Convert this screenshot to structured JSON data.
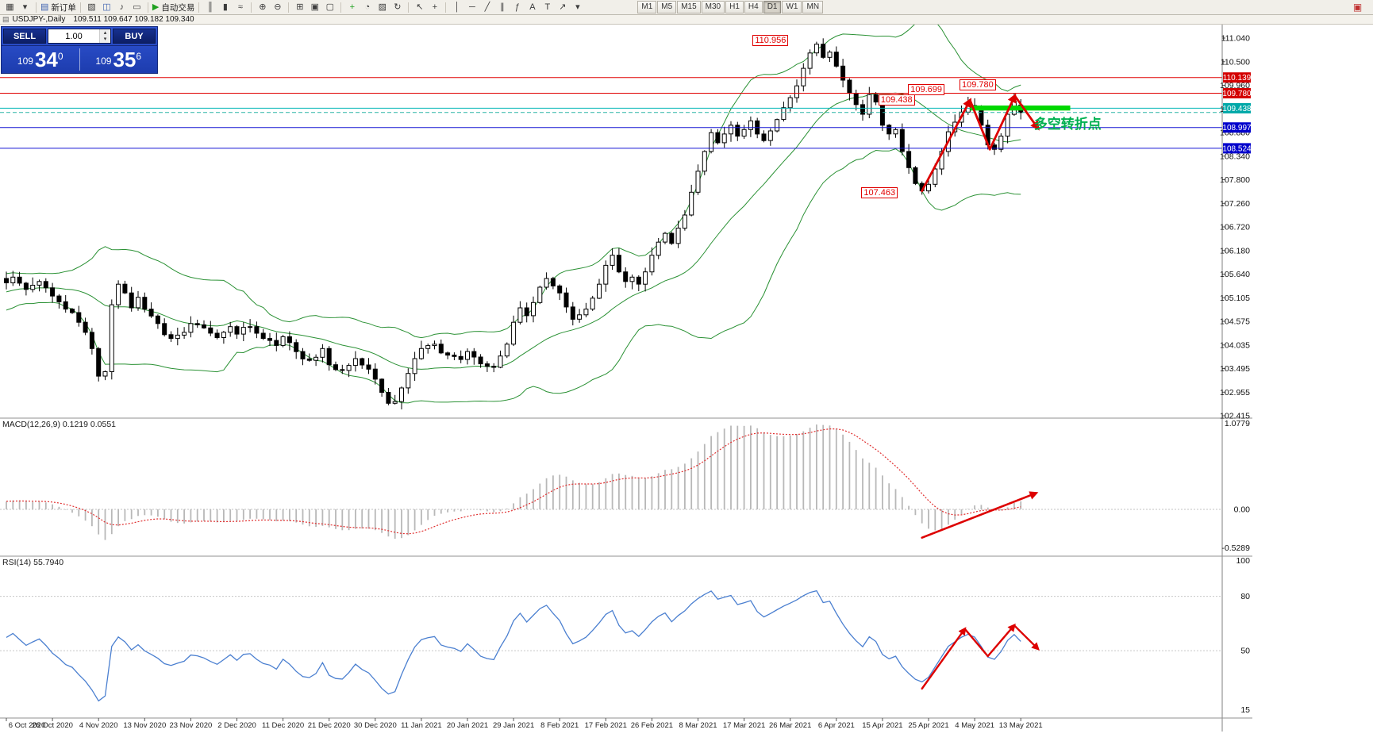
{
  "caption": {
    "window_icon": "▤",
    "symbol": "USDJPY-,Daily",
    "ohlc": "109.511 109.647 109.182 109.340"
  },
  "toolbar": {
    "groups": [
      {
        "items": [
          {
            "name": "new-chart-icon",
            "glyph": "▦"
          },
          {
            "name": "new-chart-dropdown-icon",
            "glyph": "▾"
          }
        ]
      },
      {
        "items": [
          {
            "name": "new-order-button",
            "glyph": "▤",
            "glyph_color": "#3a5fae",
            "label": "新订单"
          }
        ]
      },
      {
        "items": [
          {
            "name": "profiles-icon",
            "glyph": "▧"
          },
          {
            "name": "accounts-icon",
            "glyph": "◫",
            "glyph_color": "#3a5fae"
          },
          {
            "name": "alerts-icon",
            "glyph": "♪"
          },
          {
            "name": "mail-icon",
            "glyph": "▭"
          }
        ]
      },
      {
        "items": [
          {
            "name": "autotrading-button",
            "glyph": "▶",
            "glyph_color": "#1fa01f",
            "label": "自动交易"
          }
        ]
      },
      {
        "items": [
          {
            "name": "bar-chart-icon",
            "glyph": "║"
          },
          {
            "name": "candlestick-chart-icon",
            "glyph": "▮"
          },
          {
            "name": "line-chart-icon",
            "glyph": "≈"
          }
        ]
      },
      {
        "items": [
          {
            "name": "zoom-in-icon",
            "glyph": "⊕"
          },
          {
            "name": "zoom-out-icon",
            "glyph": "⊖"
          }
        ]
      },
      {
        "items": [
          {
            "name": "tile-windows-icon",
            "glyph": "⊞"
          },
          {
            "name": "cascade-windows-icon",
            "glyph": "▣"
          },
          {
            "name": "window-list-icon",
            "glyph": "▢"
          }
        ]
      },
      {
        "items": [
          {
            "name": "indicators-icon",
            "glyph": "+",
            "glyph_color": "#1fa01f"
          },
          {
            "name": "periods-icon",
            "glyph": "◔"
          },
          {
            "name": "templates-icon",
            "glyph": "▨"
          },
          {
            "name": "refresh-icon",
            "glyph": "↻"
          }
        ]
      },
      {
        "items": [
          {
            "name": "cursor-icon",
            "glyph": "↖"
          },
          {
            "name": "crosshair-icon",
            "glyph": "+"
          }
        ]
      },
      {
        "items": [
          {
            "name": "vertical-line-icon",
            "glyph": "│"
          },
          {
            "name": "horizontal-line-icon",
            "glyph": "─"
          },
          {
            "name": "trendline-icon",
            "glyph": "╱"
          },
          {
            "name": "channel-icon",
            "glyph": "∥"
          },
          {
            "name": "fibonacci-icon",
            "glyph": "ƒ"
          },
          {
            "name": "text-icon",
            "glyph": "A"
          },
          {
            "name": "label-icon",
            "glyph": "T"
          },
          {
            "name": "arrows-tool-icon",
            "glyph": "↗"
          },
          {
            "name": "shapes-dropdown-icon",
            "glyph": "▾"
          }
        ]
      }
    ],
    "timeframes": {
      "items": [
        "M1",
        "M5",
        "M15",
        "M30",
        "H1",
        "H4",
        "D1",
        "W1",
        "MN"
      ],
      "active": "D1"
    },
    "right_icon": {
      "name": "toolbar-extra-icon",
      "glyph": "▣",
      "glyph_color": "#c03030"
    }
  },
  "trade_panel": {
    "sell_label": "SELL",
    "buy_label": "BUY",
    "volume": "1.00",
    "spin_up": "▴",
    "spin_down": "▾",
    "sell_price": {
      "prefix": "109",
      "big": "34",
      "sup": "0"
    },
    "buy_price": {
      "prefix": "109",
      "big": "35",
      "sup": "6"
    }
  },
  "chart_data": {
    "type": "candlestick",
    "symbol": "USDJPY",
    "period": "Daily",
    "ylim": [
      102.415,
      111.04
    ],
    "bar_count": 155,
    "y_ticks": [
      "111.040",
      "110.500",
      "109.960",
      "109.420",
      "108.880",
      "108.340",
      "107.800",
      "107.260",
      "106.720",
      "106.180",
      "105.640",
      "105.105",
      "104.575",
      "104.035",
      "103.495",
      "102.955",
      "102.415"
    ],
    "x_labels": [
      "6 Oct 2020",
      "26 Oct 2020",
      "4 Nov 2020",
      "13 Nov 2020",
      "23 Nov 2020",
      "2 Dec 2020",
      "11 Dec 2020",
      "21 Dec 2020",
      "30 Dec 2020",
      "11 Jan 2021",
      "20 Jan 2021",
      "29 Jan 2021",
      "8 Feb 2021",
      "17 Feb 2021",
      "26 Feb 2021",
      "8 Mar 2021",
      "17 Mar 2021",
      "26 Mar 2021",
      "6 Apr 2021",
      "15 Apr 2021",
      "25 Apr 2021",
      "4 May 2021",
      "13 May 2021"
    ],
    "price_path": [
      [
        0,
        105.45
      ],
      [
        1,
        105.58
      ],
      [
        3,
        105.3
      ],
      [
        5,
        105.48
      ],
      [
        7,
        105.15
      ],
      [
        9,
        104.85
      ],
      [
        11,
        104.55
      ],
      [
        12,
        104.32
      ],
      [
        13,
        103.95
      ],
      [
        14,
        103.32
      ],
      [
        15,
        103.42
      ],
      [
        16,
        104.95
      ],
      [
        17,
        105.42
      ],
      [
        18,
        105.22
      ],
      [
        19,
        104.88
      ],
      [
        20,
        105.12
      ],
      [
        21,
        104.85
      ],
      [
        23,
        104.52
      ],
      [
        25,
        104.18
      ],
      [
        27,
        104.32
      ],
      [
        28,
        104.52
      ],
      [
        30,
        104.42
      ],
      [
        32,
        104.2
      ],
      [
        34,
        104.45
      ],
      [
        35,
        104.28
      ],
      [
        37,
        104.45
      ],
      [
        39,
        104.18
      ],
      [
        41,
        104.02
      ],
      [
        42,
        104.22
      ],
      [
        44,
        103.88
      ],
      [
        46,
        103.68
      ],
      [
        48,
        103.95
      ],
      [
        49,
        103.58
      ],
      [
        51,
        103.45
      ],
      [
        53,
        103.72
      ],
      [
        55,
        103.48
      ],
      [
        56,
        103.25
      ],
      [
        57,
        102.95
      ],
      [
        58,
        102.7
      ],
      [
        59,
        102.74
      ],
      [
        60,
        103.05
      ],
      [
        61,
        103.38
      ],
      [
        62,
        103.72
      ],
      [
        63,
        103.95
      ],
      [
        65,
        104.05
      ],
      [
        67,
        103.8
      ],
      [
        69,
        103.7
      ],
      [
        70,
        103.88
      ],
      [
        72,
        103.6
      ],
      [
        74,
        103.52
      ],
      [
        75,
        103.78
      ],
      [
        76,
        104.05
      ],
      [
        77,
        104.55
      ],
      [
        78,
        104.88
      ],
      [
        79,
        104.7
      ],
      [
        80,
        105.0
      ],
      [
        81,
        105.35
      ],
      [
        82,
        105.55
      ],
      [
        83,
        105.38
      ],
      [
        84,
        105.22
      ],
      [
        85,
        104.9
      ],
      [
        86,
        104.62
      ],
      [
        87,
        104.72
      ],
      [
        88,
        104.85
      ],
      [
        89,
        105.1
      ],
      [
        90,
        105.42
      ],
      [
        91,
        105.85
      ],
      [
        92,
        106.08
      ],
      [
        93,
        105.7
      ],
      [
        94,
        105.48
      ],
      [
        95,
        105.58
      ],
      [
        96,
        105.42
      ],
      [
        97,
        105.7
      ],
      [
        98,
        106.08
      ],
      [
        99,
        106.38
      ],
      [
        100,
        106.58
      ],
      [
        101,
        106.35
      ],
      [
        102,
        106.7
      ],
      [
        103,
        107.0
      ],
      [
        104,
        107.52
      ],
      [
        105,
        108.0
      ],
      [
        106,
        108.45
      ],
      [
        107,
        108.88
      ],
      [
        108,
        108.65
      ],
      [
        109,
        108.85
      ],
      [
        110,
        109.05
      ],
      [
        111,
        108.8
      ],
      [
        112,
        108.95
      ],
      [
        113,
        109.15
      ],
      [
        114,
        108.85
      ],
      [
        115,
        108.7
      ],
      [
        116,
        108.92
      ],
      [
        117,
        109.18
      ],
      [
        118,
        109.45
      ],
      [
        119,
        109.68
      ],
      [
        120,
        109.95
      ],
      [
        121,
        110.35
      ],
      [
        122,
        110.7
      ],
      [
        123,
        110.9
      ],
      [
        124,
        110.6
      ],
      [
        125,
        110.72
      ],
      [
        126,
        110.4
      ],
      [
        127,
        110.08
      ],
      [
        128,
        109.78
      ],
      [
        129,
        109.52
      ],
      [
        130,
        109.3
      ],
      [
        131,
        109.75
      ],
      [
        132,
        109.58
      ],
      [
        133,
        109.05
      ],
      [
        134,
        108.85
      ],
      [
        135,
        108.95
      ],
      [
        136,
        108.45
      ],
      [
        137,
        108.08
      ],
      [
        138,
        107.72
      ],
      [
        139,
        107.55
      ],
      [
        140,
        107.7
      ],
      [
        141,
        108.05
      ],
      [
        142,
        108.45
      ],
      [
        143,
        108.9
      ],
      [
        144,
        109.12
      ],
      [
        145,
        109.35
      ],
      [
        146,
        109.5
      ],
      [
        147,
        109.4
      ],
      [
        148,
        109.05
      ],
      [
        149,
        108.6
      ],
      [
        150,
        108.5
      ],
      [
        151,
        108.8
      ],
      [
        152,
        109.3
      ],
      [
        153,
        109.6
      ],
      [
        154,
        109.34
      ]
    ],
    "forced_points": [
      {
        "bar": 123,
        "high": 110.956
      },
      {
        "bar": 139,
        "low": 107.463
      },
      {
        "bar": 146,
        "high": 109.699
      },
      {
        "bar": 153,
        "high": 109.78
      }
    ],
    "last_bar": [
      109.511,
      109.647,
      109.182,
      109.34
    ],
    "colors": {
      "up_fill": "#ffffff",
      "down_fill": "#000000",
      "outline": "#000000",
      "bollinger": "#2a9134"
    },
    "hlines": [
      {
        "price": 110.139,
        "color": "#e00000",
        "badge": "110.139",
        "badge_bg": "#d40000"
      },
      {
        "price": 109.78,
        "color": "#e00000",
        "badge": "109.780",
        "badge_bg": "#d40000"
      },
      {
        "price": 109.438,
        "color": "#00b6b6",
        "badge": "109.438",
        "badge_bg": "#00a8a8"
      },
      {
        "price": 109.34,
        "color": "#2ab5a5",
        "dashed": true
      },
      {
        "price": 108.997,
        "color": "#1414d4",
        "badge": "108.997",
        "badge_bg": "#0000cc"
      },
      {
        "price": 108.524,
        "color": "#1414d4",
        "badge": "108.524",
        "badge_bg": "#0000cc"
      }
    ],
    "annotations": [
      {
        "text": "110.956",
        "bar": 113.3,
        "price": 110.99
      },
      {
        "text": "109.699",
        "bar": 136.9,
        "price": 109.86
      },
      {
        "text": "109.780",
        "bar": 144.7,
        "price": 109.97
      },
      {
        "text": "109.438",
        "bar": 132.4,
        "price": 109.63
      },
      {
        "text": "107.463",
        "bar": 129.8,
        "price": 107.51
      }
    ],
    "green_zone": {
      "bar1": 146.3,
      "bar2": 161.5,
      "p_top": 109.5,
      "p_bot": 109.385,
      "color": "#00d800"
    },
    "cn_note": {
      "text": "多空转折点",
      "bar": 156,
      "price": 109.15,
      "color": "#00b050"
    },
    "trend_arrows": {
      "color": "#dd0000",
      "points": [
        [
          139,
          107.55
        ],
        [
          146.3,
          109.62
        ],
        [
          149.3,
          108.5
        ],
        [
          153.1,
          109.72
        ],
        [
          156.6,
          108.98
        ]
      ],
      "head_segments": [
        0,
        2,
        3
      ]
    },
    "macd": {
      "label": "MACD(12,26,9)",
      "values": "0.1219 0.0551",
      "scale": [
        "1.0779",
        "0.00",
        "-0.5289"
      ],
      "range": [
        -0.5289,
        1.0779
      ],
      "hist_color": "#b8b8b8",
      "signal_color": "#e03030",
      "arrow": {
        "color": "#dd0000",
        "points": [
          [
            139,
            -0.35
          ],
          [
            156.3,
            0.2
          ]
        ]
      }
    },
    "rsi": {
      "label": "RSI(14)",
      "value": "55.7940",
      "scale": [
        "100",
        "80",
        "50",
        "15"
      ],
      "range": [
        15,
        100
      ],
      "levels": [
        80,
        50
      ],
      "line_color": "#4a7fd0",
      "arrows": {
        "color": "#dd0000",
        "points": [
          [
            139,
            29
          ],
          [
            145.5,
            62
          ],
          [
            149,
            47
          ],
          [
            153,
            64
          ],
          [
            156.6,
            51
          ]
        ],
        "head_segments": [
          0,
          2,
          3
        ]
      }
    }
  }
}
